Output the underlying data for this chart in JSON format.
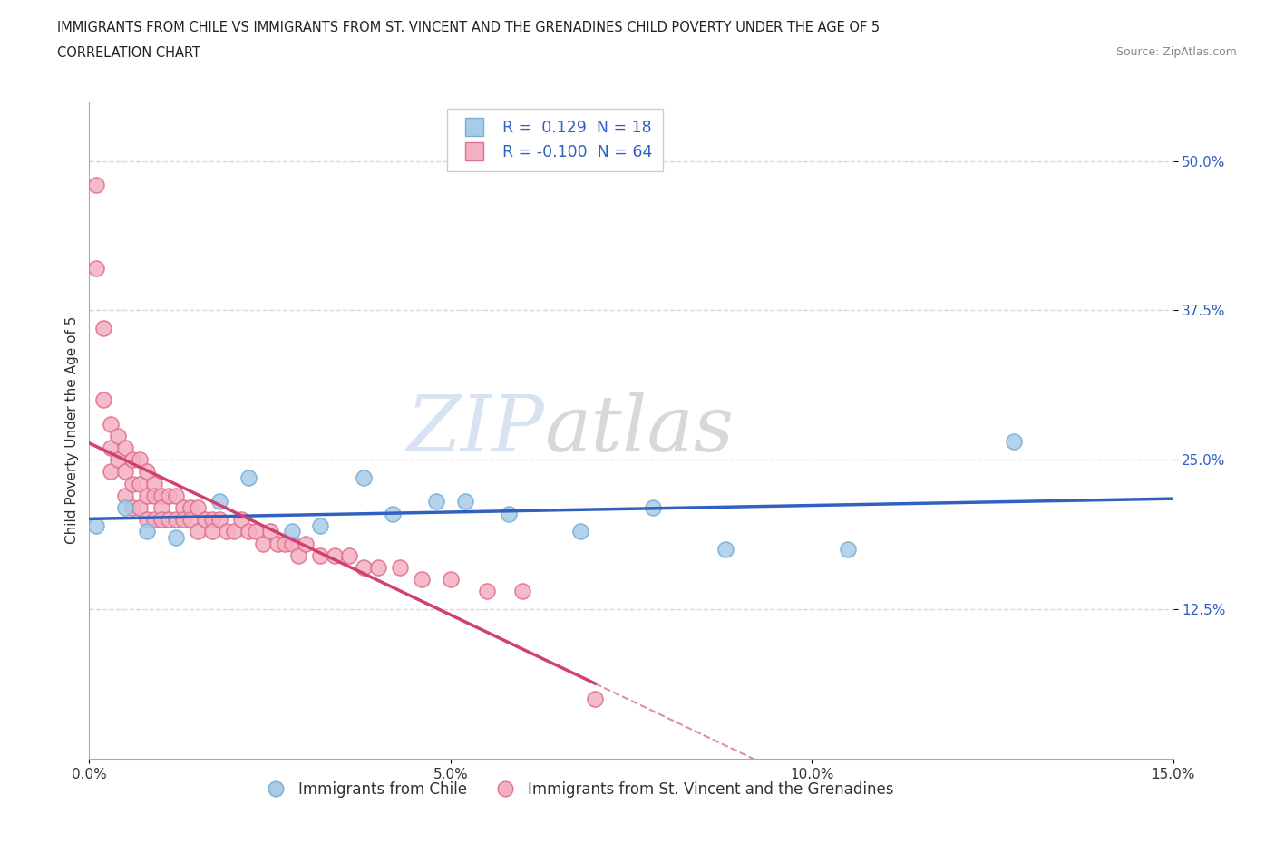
{
  "title_line1": "IMMIGRANTS FROM CHILE VS IMMIGRANTS FROM ST. VINCENT AND THE GRENADINES CHILD POVERTY UNDER THE AGE OF 5",
  "title_line2": "CORRELATION CHART",
  "source_text": "Source: ZipAtlas.com",
  "ylabel": "Child Poverty Under the Age of 5",
  "xlim": [
    0.0,
    0.15
  ],
  "ylim": [
    0.0,
    0.55
  ],
  "xticks": [
    0.0,
    0.05,
    0.1,
    0.15
  ],
  "xtick_labels": [
    "0.0%",
    "5.0%",
    "10.0%",
    "15.0%"
  ],
  "ytick_positions": [
    0.125,
    0.25,
    0.375,
    0.5
  ],
  "ytick_labels": [
    "12.5%",
    "25.0%",
    "37.5%",
    "50.0%"
  ],
  "chile_color": "#a8cce8",
  "chile_edge_color": "#7aafd4",
  "stvincent_color": "#f5b0c0",
  "stvincent_edge_color": "#e07090",
  "trend_chile_color": "#3060c0",
  "trend_stvincent_color": "#d04070",
  "R_chile": 0.129,
  "N_chile": 18,
  "R_stvincent": -0.1,
  "N_stvincent": 64,
  "legend_label_chile": "Immigrants from Chile",
  "legend_label_stvincent": "Immigrants from St. Vincent and the Grenadines",
  "watermark_part1": "ZIP",
  "watermark_part2": "atlas",
  "background_color": "#ffffff",
  "grid_color": "#d8d8d8",
  "title_fontsize": 11,
  "axis_label_fontsize": 11,
  "tick_fontsize": 11,
  "chile_x": [
    0.001,
    0.005,
    0.008,
    0.012,
    0.018,
    0.022,
    0.028,
    0.032,
    0.038,
    0.042,
    0.048,
    0.052,
    0.058,
    0.068,
    0.078,
    0.088,
    0.105,
    0.128
  ],
  "chile_y": [
    0.195,
    0.21,
    0.19,
    0.185,
    0.215,
    0.235,
    0.19,
    0.195,
    0.235,
    0.205,
    0.215,
    0.215,
    0.205,
    0.19,
    0.21,
    0.175,
    0.175,
    0.265
  ],
  "stvincent_x": [
    0.001,
    0.001,
    0.002,
    0.002,
    0.003,
    0.003,
    0.003,
    0.004,
    0.004,
    0.005,
    0.005,
    0.005,
    0.006,
    0.006,
    0.006,
    0.007,
    0.007,
    0.007,
    0.008,
    0.008,
    0.008,
    0.009,
    0.009,
    0.009,
    0.01,
    0.01,
    0.01,
    0.011,
    0.011,
    0.012,
    0.012,
    0.013,
    0.013,
    0.014,
    0.014,
    0.015,
    0.015,
    0.016,
    0.017,
    0.017,
    0.018,
    0.019,
    0.02,
    0.021,
    0.022,
    0.023,
    0.024,
    0.025,
    0.026,
    0.027,
    0.028,
    0.029,
    0.03,
    0.032,
    0.034,
    0.036,
    0.038,
    0.04,
    0.043,
    0.046,
    0.05,
    0.055,
    0.06,
    0.07
  ],
  "stvincent_y": [
    0.48,
    0.41,
    0.36,
    0.3,
    0.28,
    0.26,
    0.24,
    0.27,
    0.25,
    0.26,
    0.24,
    0.22,
    0.25,
    0.23,
    0.21,
    0.25,
    0.23,
    0.21,
    0.24,
    0.22,
    0.2,
    0.23,
    0.22,
    0.2,
    0.22,
    0.21,
    0.2,
    0.22,
    0.2,
    0.22,
    0.2,
    0.21,
    0.2,
    0.21,
    0.2,
    0.21,
    0.19,
    0.2,
    0.2,
    0.19,
    0.2,
    0.19,
    0.19,
    0.2,
    0.19,
    0.19,
    0.18,
    0.19,
    0.18,
    0.18,
    0.18,
    0.17,
    0.18,
    0.17,
    0.17,
    0.17,
    0.16,
    0.16,
    0.16,
    0.15,
    0.15,
    0.14,
    0.14,
    0.05
  ]
}
